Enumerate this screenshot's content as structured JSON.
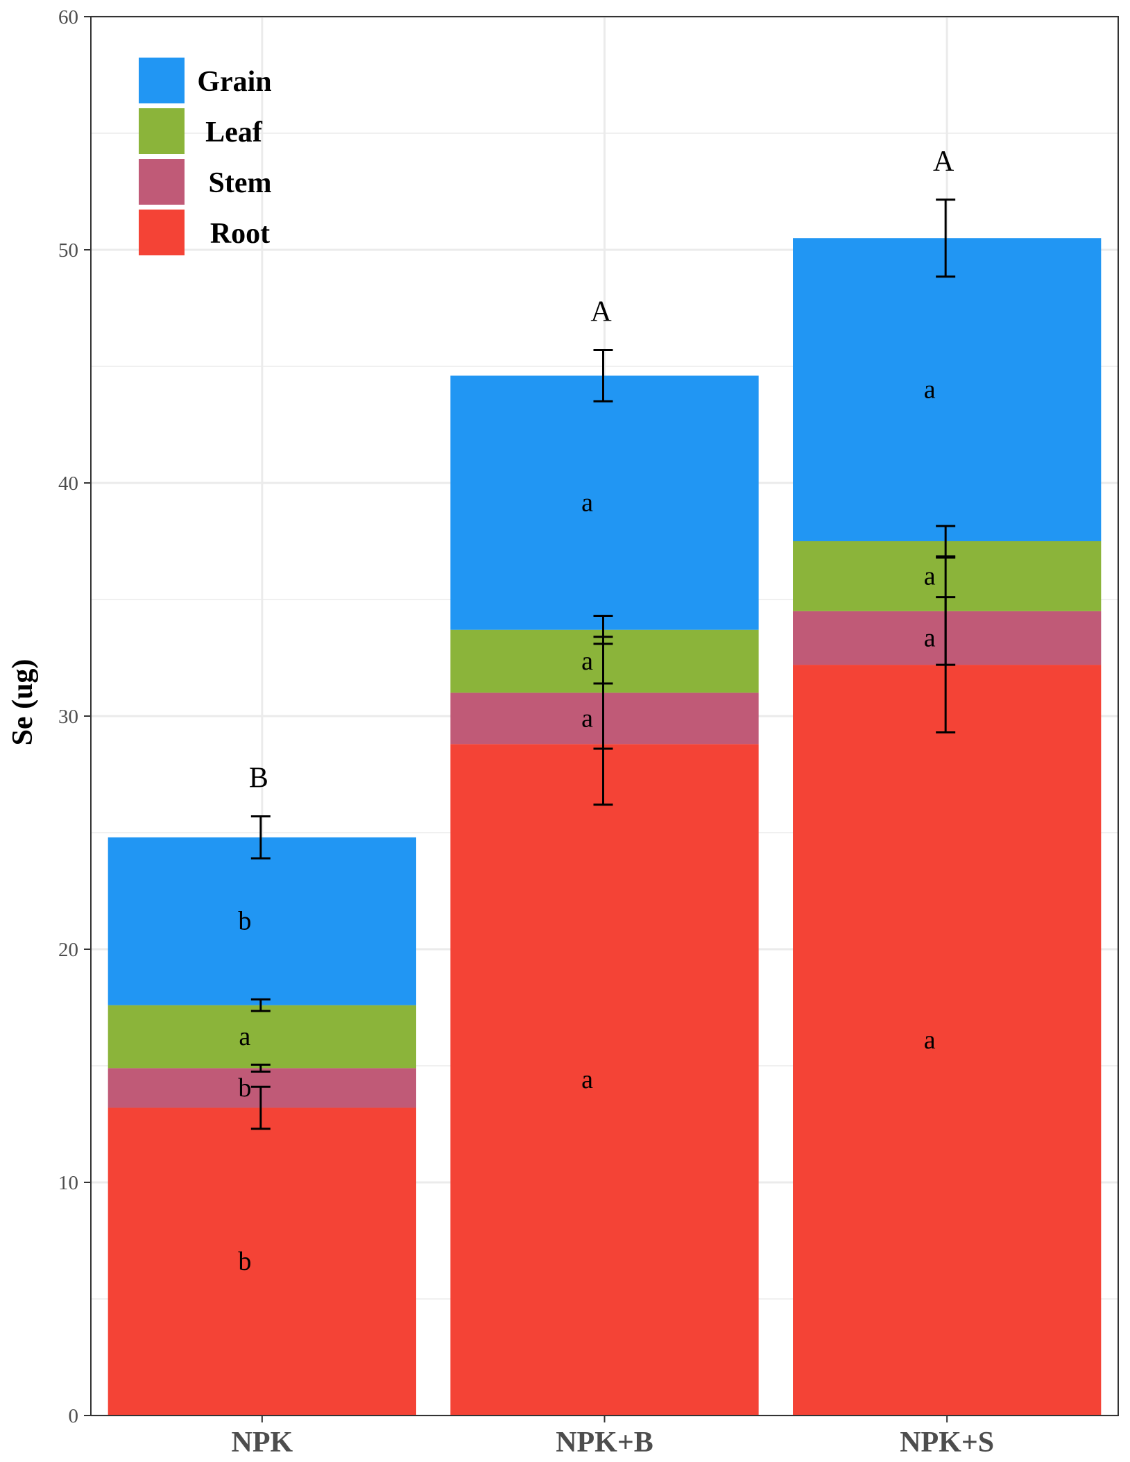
{
  "chart_data": {
    "type": "bar",
    "stacked": true,
    "title": "",
    "xlabel": "",
    "ylabel": "Se (ug)",
    "ylim": [
      0,
      60
    ],
    "yticks": [
      0,
      10,
      20,
      30,
      40,
      50,
      60
    ],
    "grid": true,
    "legend_position": "top-left",
    "categories": [
      "NPK",
      "NPK+B",
      "NPK+S"
    ],
    "series": [
      {
        "name": "Root",
        "color": "#F44336",
        "values": [
          13.2,
          28.8,
          32.2
        ],
        "errors": [
          0.9,
          2.6,
          2.9
        ],
        "letters": [
          "b",
          "a",
          "a"
        ]
      },
      {
        "name": "Stem",
        "color": "#C05A77",
        "values": [
          1.7,
          2.2,
          2.3
        ],
        "errors": [
          0.15,
          2.4,
          2.3
        ],
        "letters": [
          "b",
          "a",
          "a"
        ]
      },
      {
        "name": "Leaf",
        "color": "#8BB43A",
        "values": [
          2.7,
          2.7,
          3.0
        ],
        "errors": [
          0.25,
          0.6,
          0.65
        ],
        "letters": [
          "a",
          "a",
          "a"
        ]
      },
      {
        "name": "Grain",
        "color": "#2196F3",
        "values": [
          7.2,
          10.9,
          13.0
        ],
        "errors": [
          0.9,
          1.1,
          1.65
        ],
        "letters": [
          "b",
          "a",
          "a"
        ]
      }
    ],
    "legend_order": [
      "Grain",
      "Leaf",
      "Stem",
      "Root"
    ],
    "total_letters": [
      "B",
      "A",
      "A"
    ]
  }
}
